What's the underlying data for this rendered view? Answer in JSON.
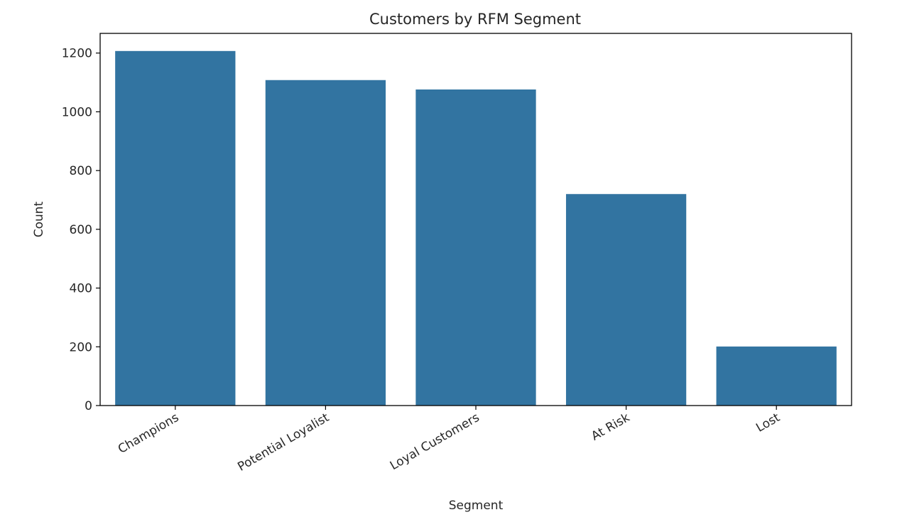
{
  "chart_data": {
    "type": "bar",
    "title": "Customers by RFM Segment",
    "xlabel": "Segment",
    "ylabel": "Count",
    "categories": [
      "Champions",
      "Potential Loyalist",
      "Loyal Customers",
      "At Risk",
      "Lost"
    ],
    "values": [
      1207,
      1108,
      1076,
      720,
      201
    ],
    "ylim": [
      0,
      1267
    ],
    "yticks": [
      0,
      200,
      400,
      600,
      800,
      1000,
      1200
    ],
    "bar_color": "#3274a1",
    "grid": false,
    "legend": "none"
  }
}
